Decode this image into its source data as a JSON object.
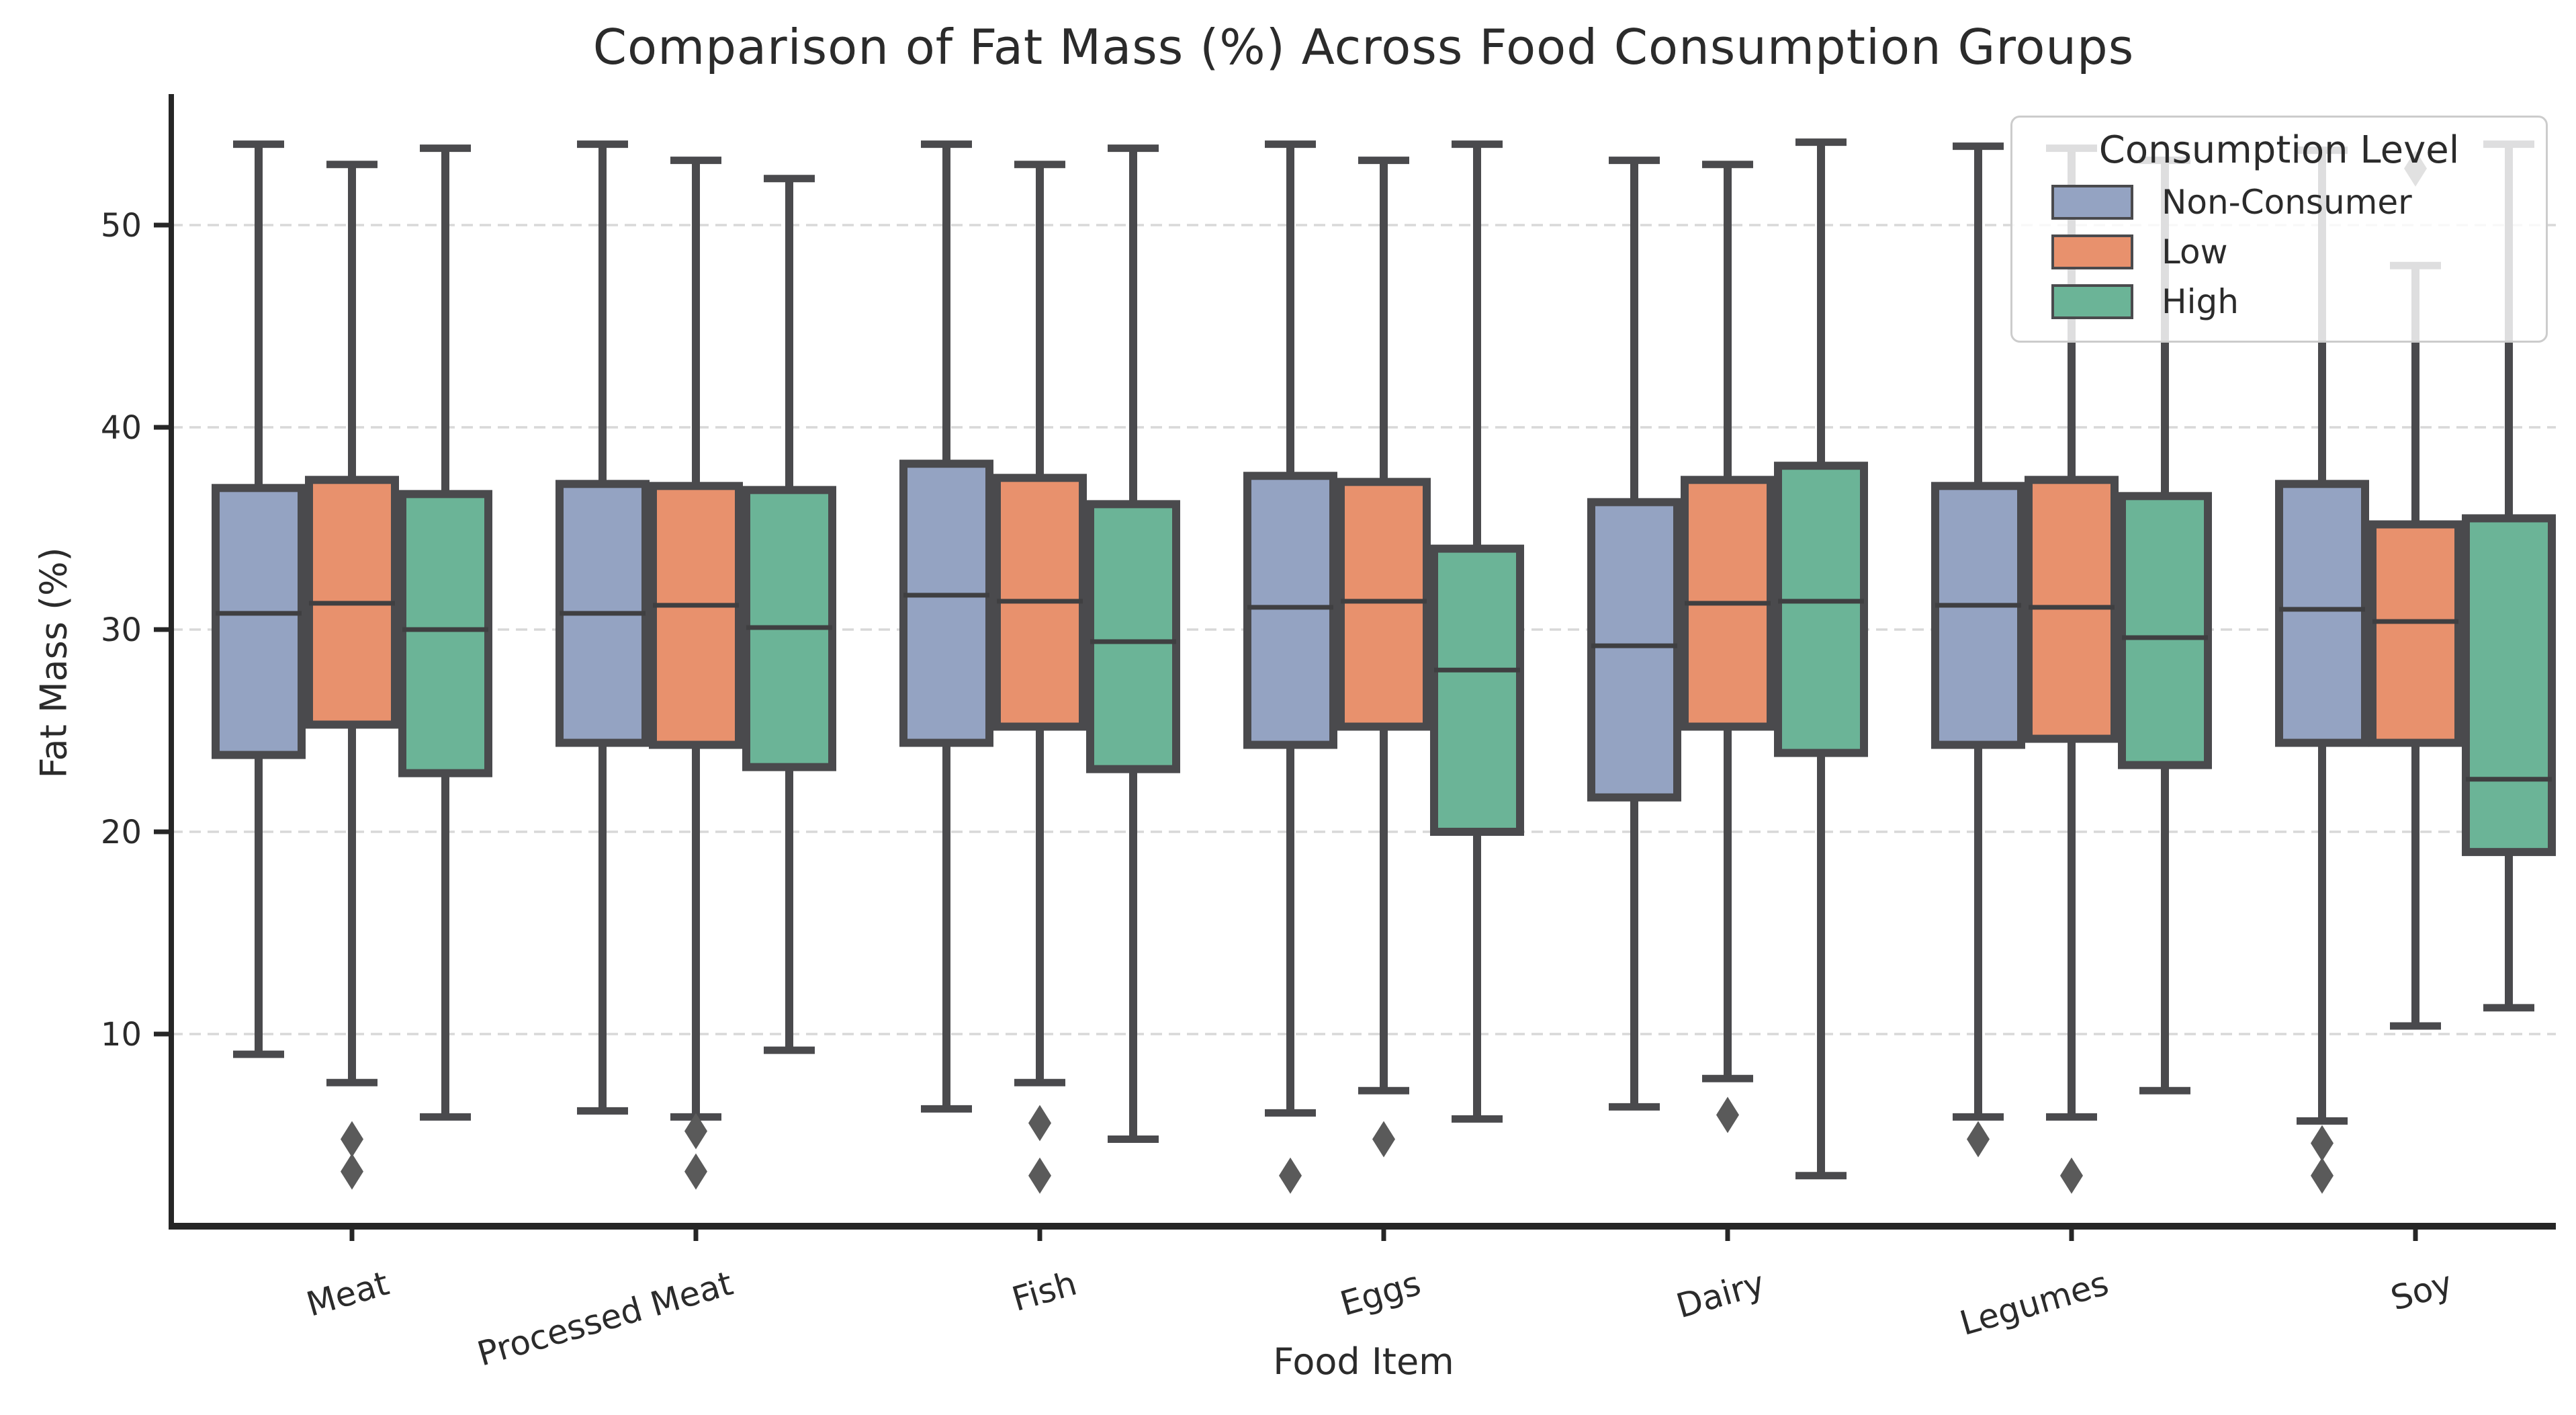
{
  "figure": {
    "title": "Comparison of Fat Mass (%) Across Food Consumption Groups",
    "xlabel": "Food Item",
    "ylabel": "Fat Mass (%)"
  },
  "legend": {
    "title": "Consumption Level",
    "entries": [
      {
        "label": "Non-Consumer",
        "color": "#94a3c2"
      },
      {
        "label": "Low",
        "color": "#e8916d"
      },
      {
        "label": "High",
        "color": "#6bb497"
      }
    ]
  },
  "style": {
    "box_edge_color": "#4a4a4d",
    "median_color": "#3f3f41",
    "flier_color": "#5a5a5a",
    "grid_color": "#d8d8d8",
    "spine_color": "#262626",
    "tick_text_color": "#2b2b2b"
  },
  "chart_data": {
    "type": "box",
    "title": "Comparison of Fat Mass (%) Across Food Consumption Groups",
    "xlabel": "Food Item",
    "ylabel": "Fat Mass (%)",
    "categories": [
      "Meat",
      "Processed Meat",
      "Fish",
      "Eggs",
      "Dairy",
      "Legumes",
      "Soy"
    ],
    "yticks": [
      10,
      20,
      30,
      40,
      50
    ],
    "ylim": [
      0.5,
      56.5
    ],
    "grid": "horizontal-dashed",
    "legend_position": "upper right",
    "xticklabel_rotation_deg": -16,
    "series": [
      {
        "name": "Non-Consumer",
        "color": "#94a3c2",
        "boxes": [
          {
            "category": "Meat",
            "whislo": 9.0,
            "q1": 23.8,
            "med": 30.8,
            "q3": 37.0,
            "whishi": 54.0,
            "outliers": []
          },
          {
            "category": "Processed Meat",
            "whislo": 6.2,
            "q1": 24.4,
            "med": 30.8,
            "q3": 37.2,
            "whishi": 54.0,
            "outliers": []
          },
          {
            "category": "Fish",
            "whislo": 6.3,
            "q1": 24.4,
            "med": 31.7,
            "q3": 38.2,
            "whishi": 54.0,
            "outliers": []
          },
          {
            "category": "Eggs",
            "whislo": 6.1,
            "q1": 24.3,
            "med": 31.1,
            "q3": 37.6,
            "whishi": 54.0,
            "outliers": [
              3.0
            ]
          },
          {
            "category": "Dairy",
            "whislo": 6.4,
            "q1": 21.7,
            "med": 29.2,
            "q3": 36.3,
            "whishi": 53.2,
            "outliers": []
          },
          {
            "category": "Legumes",
            "whislo": 5.9,
            "q1": 24.3,
            "med": 31.2,
            "q3": 37.1,
            "whishi": 53.9,
            "outliers": [
              4.8
            ]
          },
          {
            "category": "Soy",
            "whislo": 5.7,
            "q1": 24.4,
            "med": 31.0,
            "q3": 37.2,
            "whishi": 53.7,
            "outliers": [
              4.6,
              3.0
            ]
          }
        ]
      },
      {
        "name": "Low",
        "color": "#e8916d",
        "boxes": [
          {
            "category": "Meat",
            "whislo": 7.6,
            "q1": 25.3,
            "med": 31.3,
            "q3": 37.4,
            "whishi": 53.0,
            "outliers": [
              4.8,
              3.2
            ]
          },
          {
            "category": "Processed Meat",
            "whislo": 5.9,
            "q1": 24.3,
            "med": 31.2,
            "q3": 37.1,
            "whishi": 53.2,
            "outliers": [
              5.2,
              3.2
            ]
          },
          {
            "category": "Fish",
            "whislo": 7.6,
            "q1": 25.2,
            "med": 31.4,
            "q3": 37.5,
            "whishi": 53.0,
            "outliers": [
              5.6,
              3.0
            ]
          },
          {
            "category": "Eggs",
            "whislo": 7.2,
            "q1": 25.2,
            "med": 31.4,
            "q3": 37.3,
            "whishi": 53.2,
            "outliers": [
              4.8
            ]
          },
          {
            "category": "Dairy",
            "whislo": 7.8,
            "q1": 25.2,
            "med": 31.3,
            "q3": 37.4,
            "whishi": 53.0,
            "outliers": [
              6.0
            ]
          },
          {
            "category": "Legumes",
            "whislo": 5.9,
            "q1": 24.6,
            "med": 31.1,
            "q3": 37.4,
            "whishi": 53.8,
            "outliers": [
              3.0
            ]
          },
          {
            "category": "Soy",
            "whislo": 10.4,
            "q1": 24.4,
            "med": 30.4,
            "q3": 35.2,
            "whishi": 48.0,
            "outliers": [
              52.8
            ]
          }
        ]
      },
      {
        "name": "High",
        "color": "#6bb497",
        "boxes": [
          {
            "category": "Meat",
            "whislo": 5.9,
            "q1": 22.9,
            "med": 30.0,
            "q3": 36.7,
            "whishi": 53.8,
            "outliers": []
          },
          {
            "category": "Processed Meat",
            "whislo": 9.2,
            "q1": 23.2,
            "med": 30.1,
            "q3": 36.9,
            "whishi": 52.3,
            "outliers": []
          },
          {
            "category": "Fish",
            "whislo": 4.8,
            "q1": 23.1,
            "med": 29.4,
            "q3": 36.2,
            "whishi": 53.8,
            "outliers": []
          },
          {
            "category": "Eggs",
            "whislo": 5.8,
            "q1": 20.0,
            "med": 28.0,
            "q3": 34.0,
            "whishi": 54.0,
            "outliers": []
          },
          {
            "category": "Dairy",
            "whislo": 3.0,
            "q1": 23.9,
            "med": 31.4,
            "q3": 38.1,
            "whishi": 54.1,
            "outliers": []
          },
          {
            "category": "Legumes",
            "whislo": 7.2,
            "q1": 23.3,
            "med": 29.6,
            "q3": 36.6,
            "whishi": 53.2,
            "outliers": []
          },
          {
            "category": "Soy",
            "whislo": 11.3,
            "q1": 19.0,
            "med": 22.6,
            "q3": 35.5,
            "whishi": 54.0,
            "outliers": []
          }
        ]
      }
    ]
  }
}
